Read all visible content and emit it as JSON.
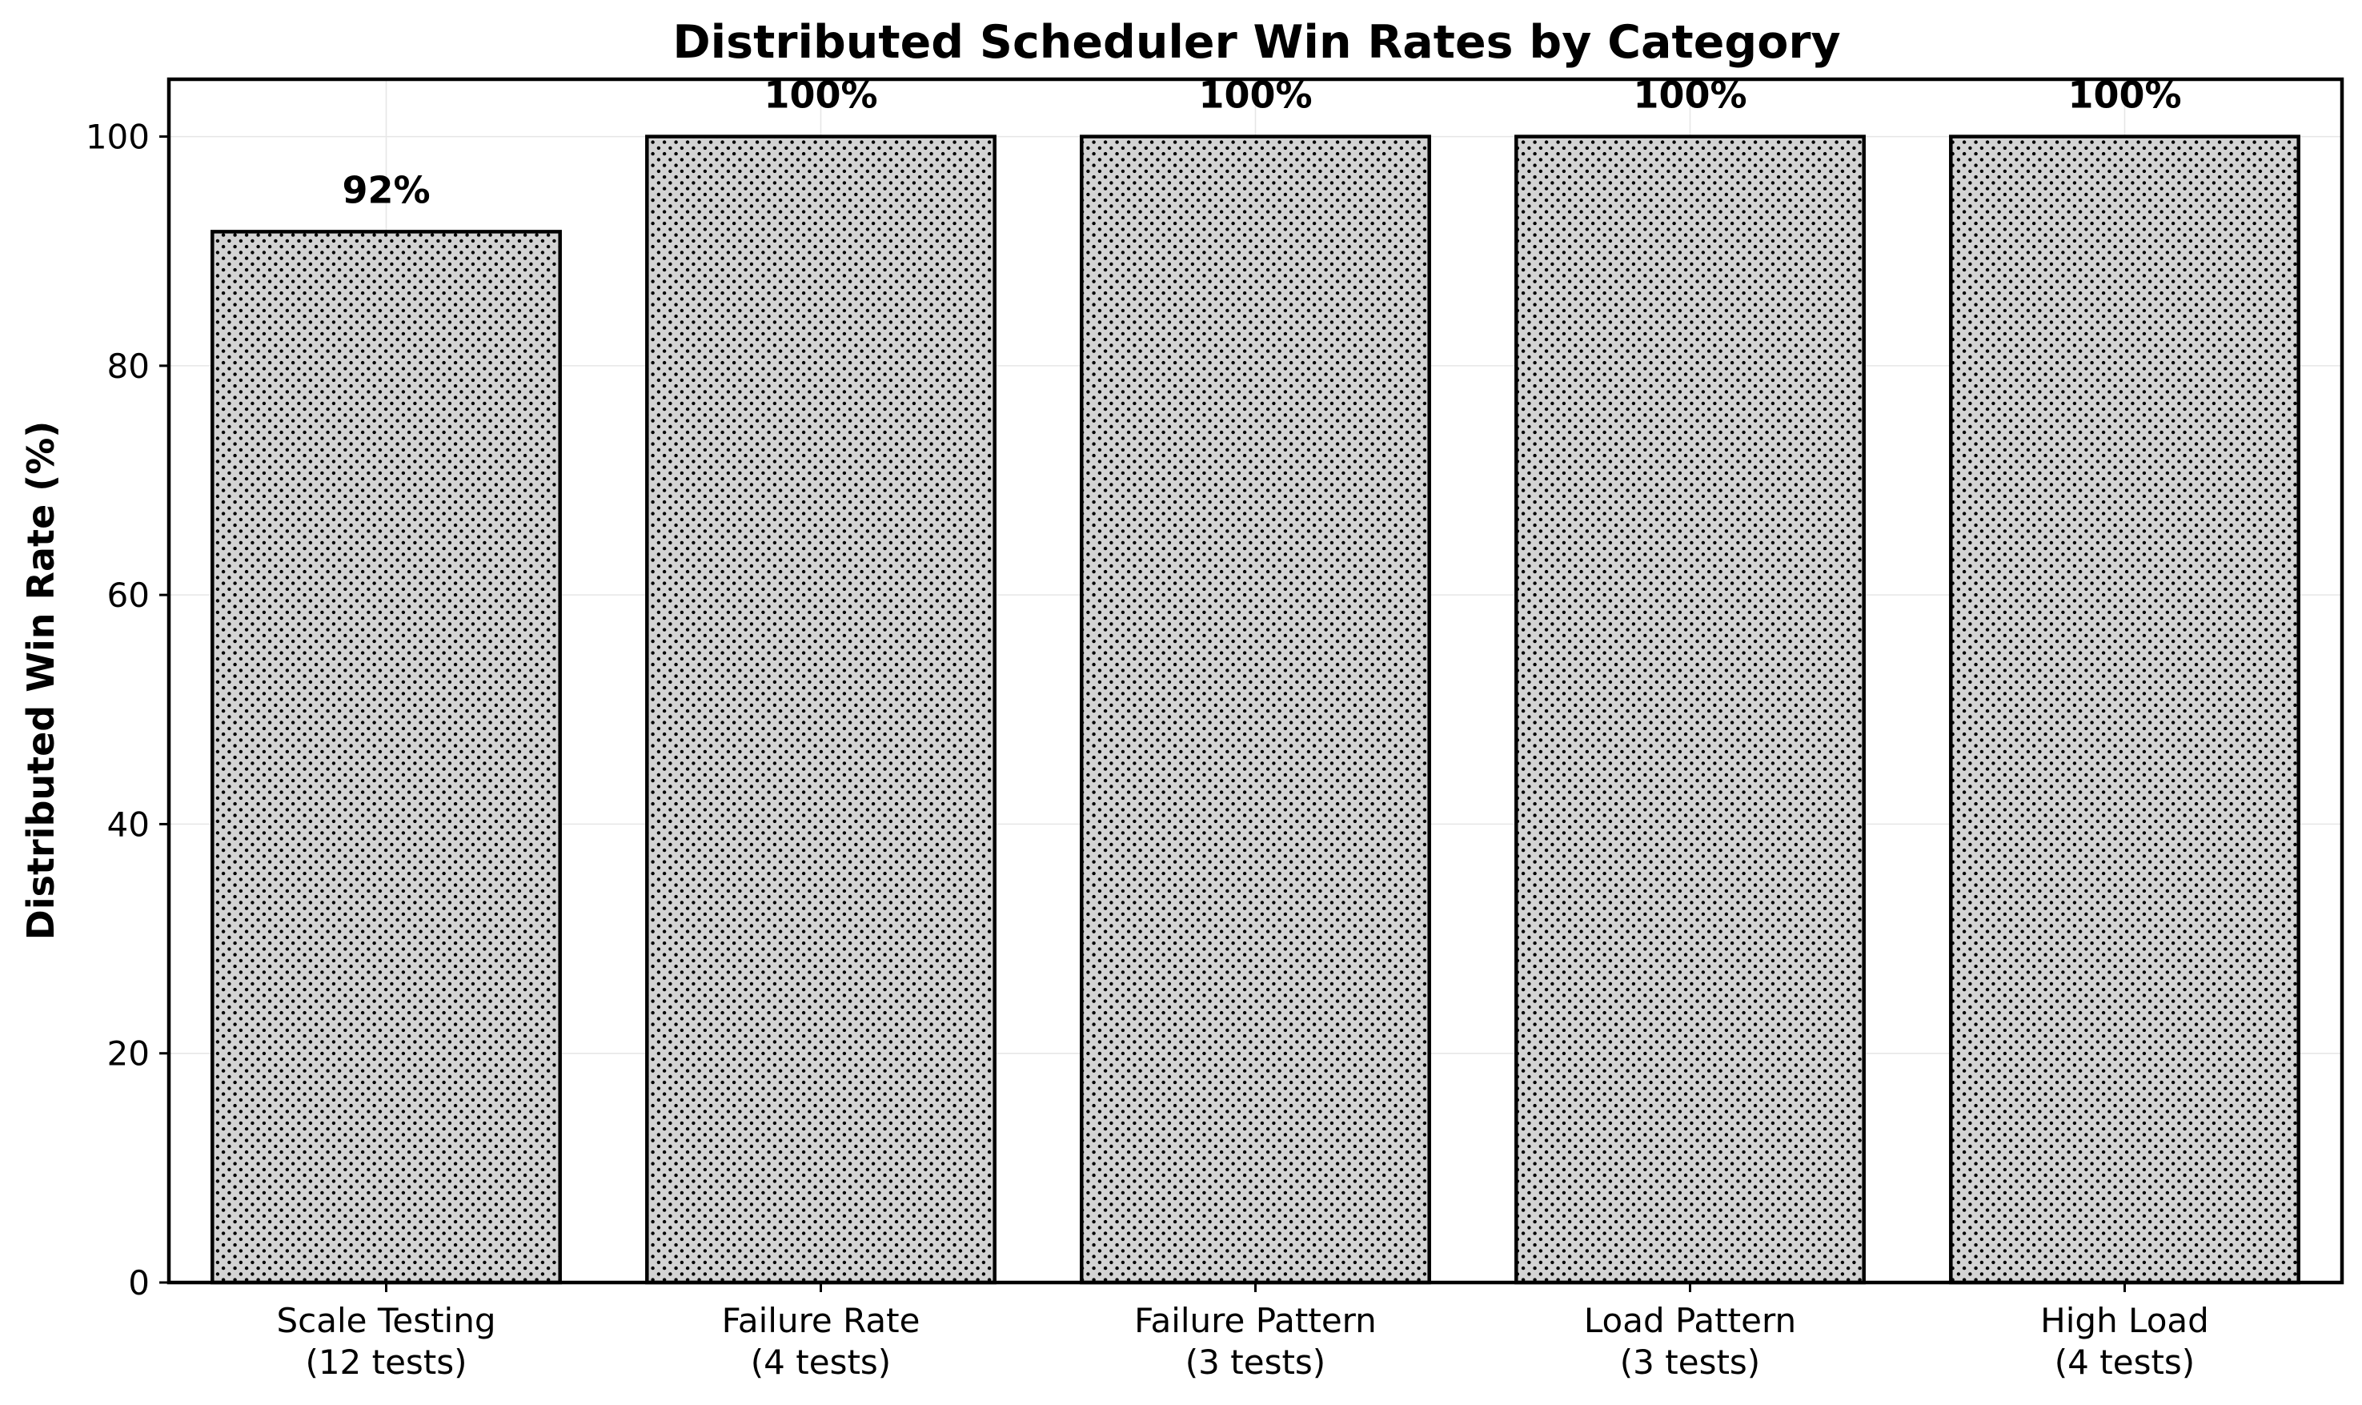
{
  "chart_data": {
    "type": "bar",
    "title": "Distributed Scheduler Win Rates by Category",
    "xlabel": "",
    "ylabel": "Distributed Win Rate (%)",
    "ylim": [
      0,
      105
    ],
    "yticks": [
      0,
      20,
      40,
      60,
      80,
      100
    ],
    "grid": true,
    "categories": [
      {
        "name": "Scale Testing",
        "count": "(12 tests)"
      },
      {
        "name": "Failure Rate",
        "count": "(4 tests)"
      },
      {
        "name": "Failure Pattern",
        "count": "(3 tests)"
      },
      {
        "name": "Load Pattern",
        "count": "(3 tests)"
      },
      {
        "name": "High Load",
        "count": "(4 tests)"
      }
    ],
    "values": [
      91.7,
      100,
      100,
      100,
      100
    ],
    "value_labels": [
      "92%",
      "100%",
      "100%",
      "100%",
      "100%"
    ],
    "colors": {
      "bar_fill": "#d3d3d3",
      "bar_edge": "#000000",
      "hatch": "#000000",
      "grid": "#e6e6e6"
    }
  }
}
